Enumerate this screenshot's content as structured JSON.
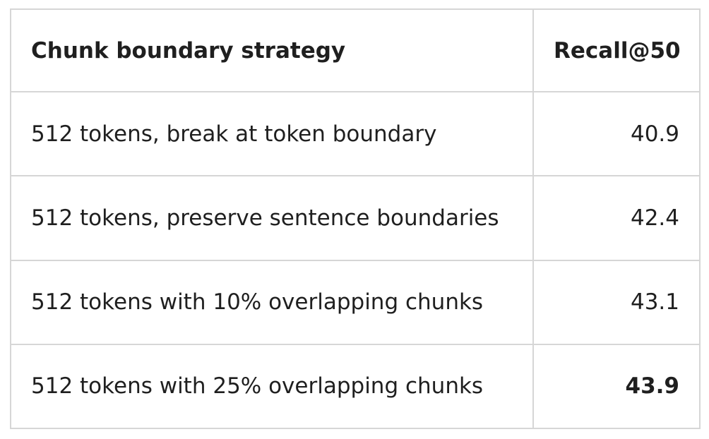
{
  "table": {
    "headers": {
      "strategy": "Chunk boundary strategy",
      "recall": "Recall@50"
    },
    "rows": [
      {
        "strategy": "512 tokens, break at token boundary",
        "recall": "40.9"
      },
      {
        "strategy": "512 tokens, preserve sentence boundaries",
        "recall": "42.4"
      },
      {
        "strategy": "512 tokens with 10% overlapping chunks",
        "recall": "43.1"
      },
      {
        "strategy": "512 tokens with 25% overlapping chunks",
        "recall": "43.9"
      }
    ]
  }
}
